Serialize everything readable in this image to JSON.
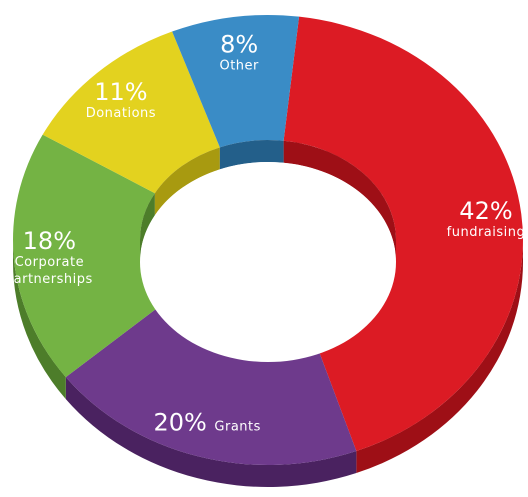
{
  "chart_data": {
    "type": "pie",
    "variant": "donut-3d",
    "title": "",
    "categories": [
      "Fundraising",
      "Grants",
      "Corporate Partnerships",
      "Donations",
      "Other"
    ],
    "values": [
      42,
      20,
      18,
      11,
      8
    ],
    "slices": [
      {
        "category_lines": [
          "fundraising"
        ],
        "percent_label": "42%",
        "value": 42,
        "color": "#dc1b24",
        "side_color": "#9e0f16"
      },
      {
        "category_lines": [
          "Grants"
        ],
        "percent_label": "20%",
        "value": 20,
        "color": "#6e3a8c",
        "side_color": "#4a2260"
      },
      {
        "category_lines": [
          "Corporate",
          "Partnerships"
        ],
        "percent_label": "18%",
        "value": 18,
        "color": "#74b344",
        "side_color": "#4d7d2a"
      },
      {
        "category_lines": [
          "Donations"
        ],
        "percent_label": "11%",
        "value": 11,
        "color": "#e3d21f",
        "side_color": "#a89a10"
      },
      {
        "category_lines": [
          "Other"
        ],
        "percent_label": "8%",
        "value": 8,
        "color": "#3a8cc6",
        "side_color": "#235f8a"
      }
    ],
    "legend": "none"
  }
}
